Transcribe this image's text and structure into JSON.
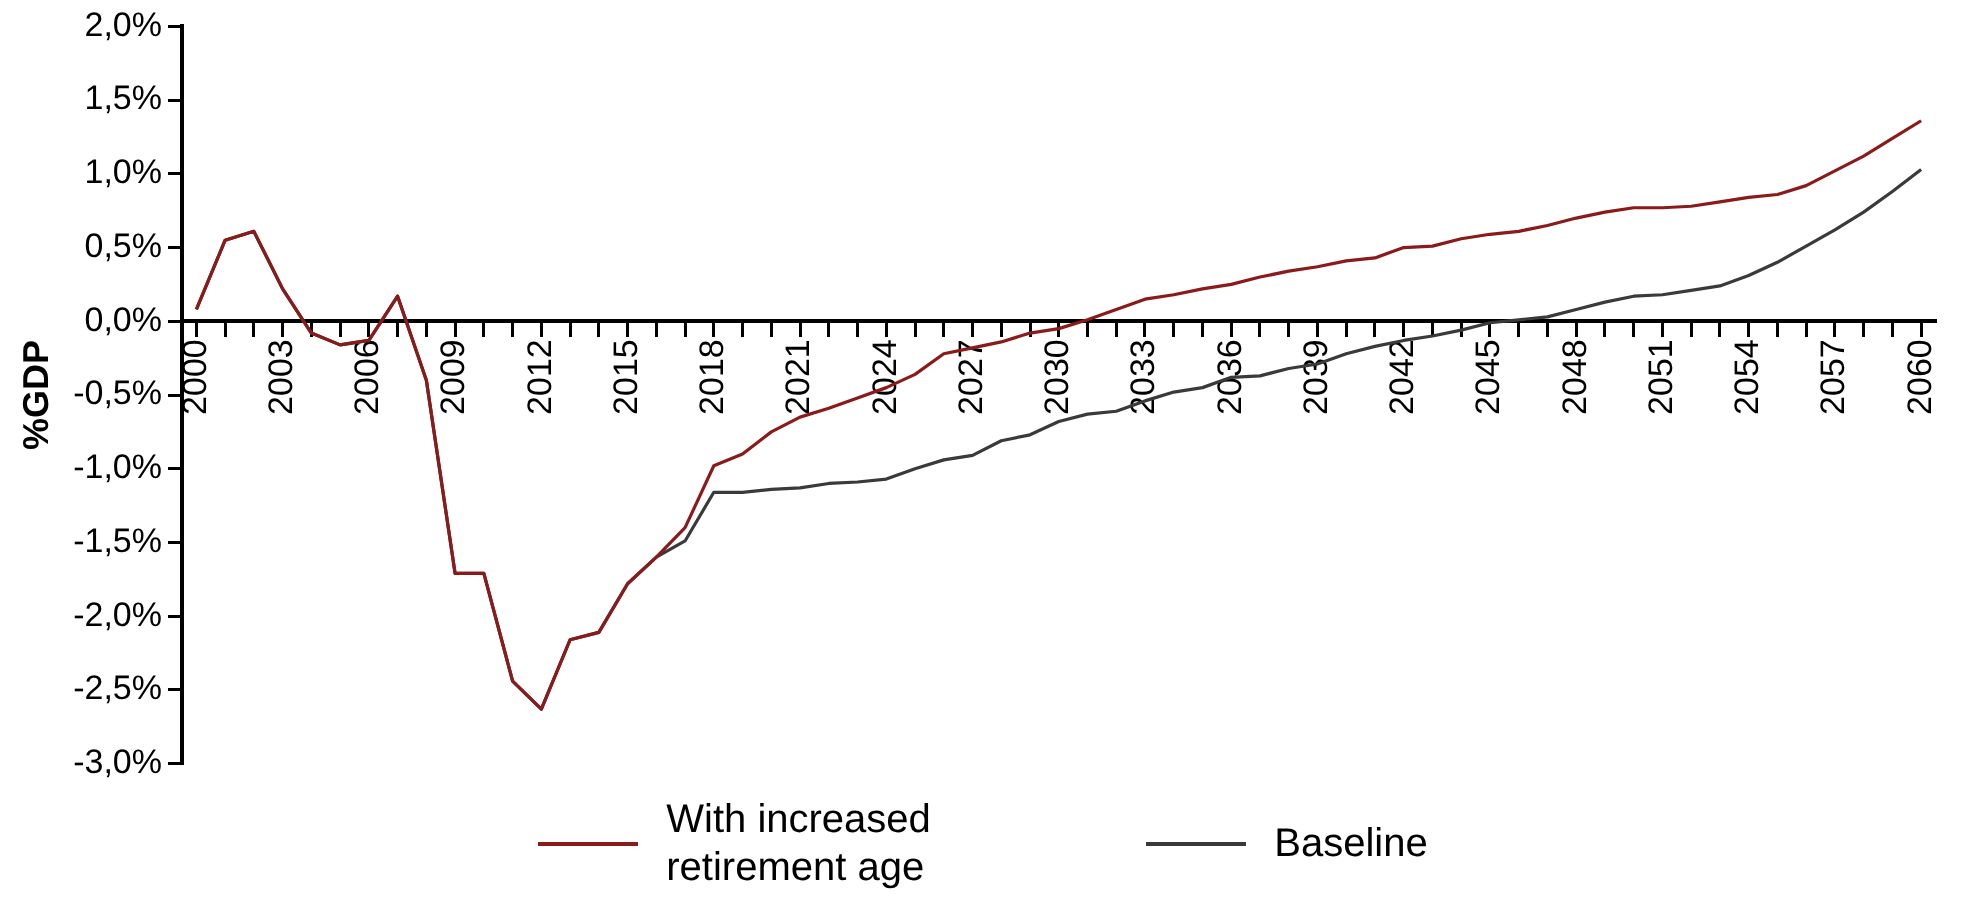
{
  "chart_data": {
    "type": "line",
    "ylabel": "%GDP",
    "legend": "bottom",
    "marker": "none",
    "categories": [
      "2000",
      null,
      null,
      "2003",
      null,
      null,
      "2006",
      null,
      null,
      "2009",
      null,
      null,
      "2012",
      null,
      null,
      "2015",
      null,
      null,
      "2018",
      null,
      null,
      "2021",
      null,
      null,
      "2024",
      null,
      null,
      "2027",
      null,
      null,
      "2030",
      null,
      null,
      "2033",
      null,
      null,
      "2036",
      null,
      null,
      "2039",
      null,
      null,
      "2042",
      null,
      null,
      "2045",
      null,
      null,
      "2048",
      null,
      null,
      "2051",
      null,
      null,
      "2054",
      null,
      null,
      "2057",
      null,
      null,
      "2060"
    ],
    "ylim": [
      -3,
      2
    ],
    "yticks": [
      {
        "value": -3,
        "label": "-3,0%"
      },
      {
        "value": -2.5,
        "label": "-2,5%"
      },
      {
        "value": -2,
        "label": "-2,0%"
      },
      {
        "value": -1.5,
        "label": "-1,5%"
      },
      {
        "value": -1,
        "label": "-1,0%"
      },
      {
        "value": -0.5,
        "label": "-0,5%"
      },
      {
        "value": 0,
        "label": "0,0%"
      },
      {
        "value": 0.5,
        "label": "0,5%"
      },
      {
        "value": 1,
        "label": "1,0%"
      },
      {
        "value": 1.5,
        "label": "1,5%"
      },
      {
        "value": 2,
        "label": "2,0%"
      }
    ],
    "series": [
      {
        "name": "With increased retirement age",
        "color": "#8b1a1a",
        "values": [
          0.08,
          0.55,
          0.61,
          0.22,
          -0.08,
          -0.16,
          -0.13,
          0.17,
          -0.4,
          -1.71,
          -1.71,
          -2.44,
          -2.63,
          -2.16,
          -2.11,
          -1.78,
          -1.6,
          -1.4,
          -0.98,
          -0.9,
          -0.75,
          -0.65,
          -0.59,
          -0.52,
          -0.45,
          -0.36,
          -0.22,
          -0.18,
          -0.14,
          -0.08,
          -0.05,
          0.01,
          0.08,
          0.15,
          0.18,
          0.22,
          0.25,
          0.3,
          0.34,
          0.37,
          0.41,
          0.43,
          0.5,
          0.51,
          0.56,
          0.59,
          0.61,
          0.65,
          0.7,
          0.74,
          0.77,
          0.77,
          0.78,
          0.81,
          0.84,
          0.86,
          0.92,
          1.02,
          1.12,
          1.24,
          1.36
        ]
      },
      {
        "name": "Baseline",
        "color": "#3a3a3a",
        "values": [
          0.08,
          0.55,
          0.61,
          0.22,
          -0.08,
          -0.16,
          -0.13,
          0.17,
          -0.4,
          -1.71,
          -1.71,
          -2.44,
          -2.63,
          -2.16,
          -2.11,
          -1.78,
          -1.6,
          -1.49,
          -1.16,
          -1.16,
          -1.14,
          -1.13,
          -1.1,
          -1.09,
          -1.07,
          -1.0,
          -0.94,
          -0.91,
          -0.81,
          -0.77,
          -0.68,
          -0.63,
          -0.61,
          -0.54,
          -0.48,
          -0.45,
          -0.38,
          -0.37,
          -0.32,
          -0.29,
          -0.22,
          -0.17,
          -0.13,
          -0.1,
          -0.06,
          -0.01,
          0.01,
          0.03,
          0.08,
          0.13,
          0.17,
          0.18,
          0.21,
          0.24,
          0.31,
          0.4,
          0.51,
          0.62,
          0.74,
          0.88,
          1.03
        ]
      }
    ]
  }
}
